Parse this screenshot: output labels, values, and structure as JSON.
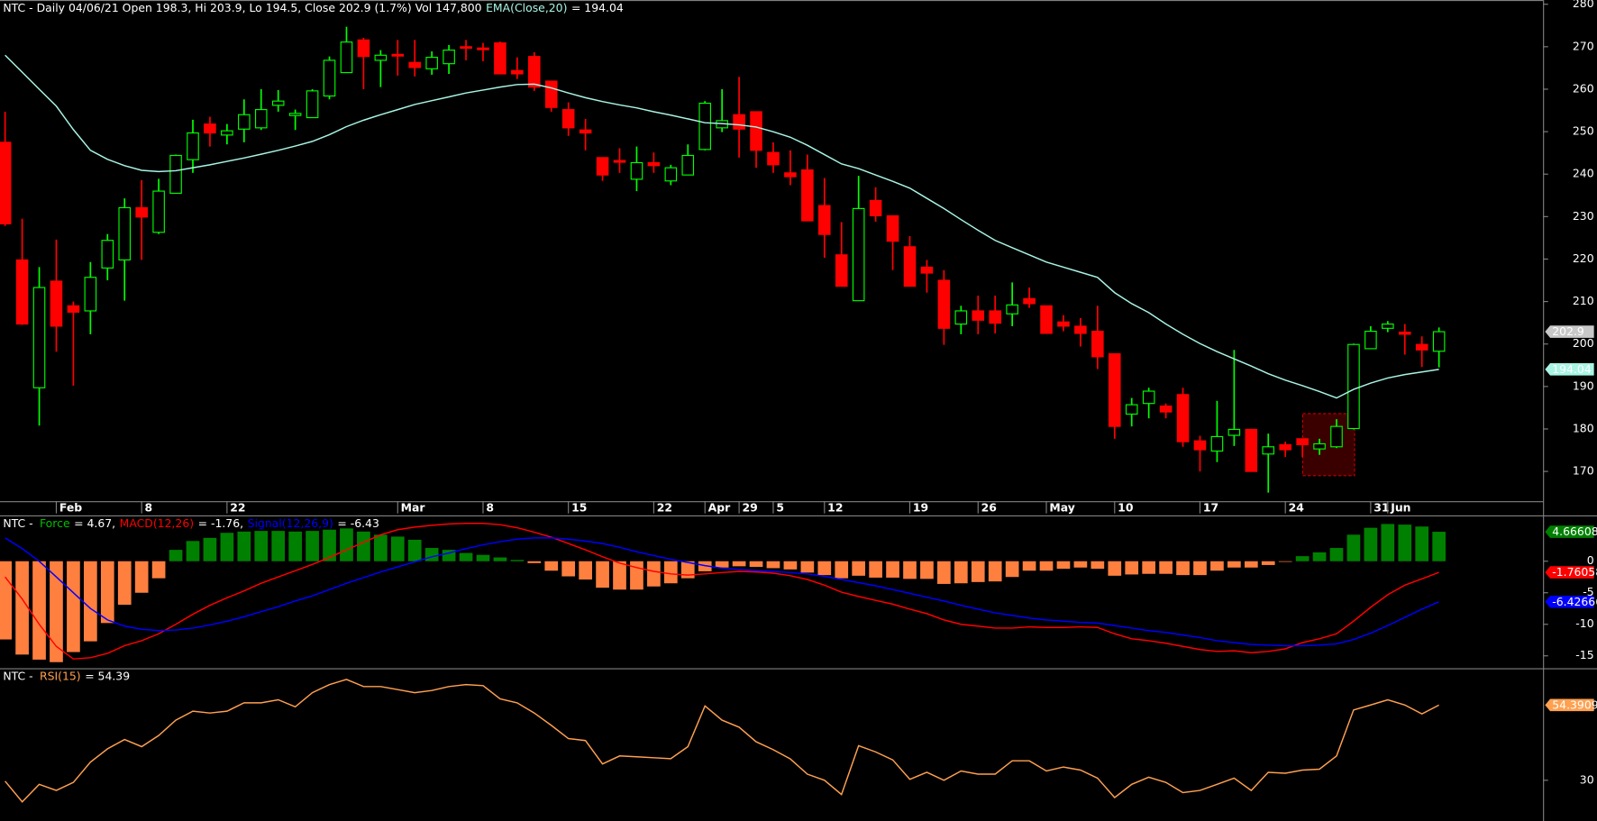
{
  "chart_data": [
    {
      "type": "candlestick",
      "title": "NTC - Daily 04/06/21 Open 198.3, Hi 203.9, Lo 194.5, Close 202.9 (1.7%) Vol 147,800",
      "categories": [
        null,
        null,
        null,
        "Feb",
        null,
        null,
        null,
        null,
        "8",
        null,
        null,
        null,
        null,
        "22",
        null,
        null,
        null,
        null,
        null,
        null,
        null,
        null,
        null,
        "Mar",
        null,
        null,
        null,
        null,
        "8",
        null,
        null,
        null,
        null,
        "15",
        null,
        null,
        null,
        null,
        "22",
        null,
        null,
        "Apr",
        null,
        "29",
        null,
        "5",
        null,
        null,
        "12",
        null,
        null,
        null,
        null,
        "19",
        null,
        null,
        null,
        "26",
        null,
        null,
        null,
        "May",
        null,
        null,
        null,
        "10",
        null,
        null,
        null,
        null,
        "17",
        null,
        null,
        null,
        null,
        "24",
        null,
        null,
        null,
        null,
        "31",
        "Jun",
        null,
        null,
        null
      ],
      "open": [
        247.5,
        219.8,
        189.7,
        214.8,
        209.0,
        207.8,
        217.9,
        219.8,
        232.1,
        226.3,
        235.5,
        243.4,
        251.8,
        249.2,
        250.6,
        250.9,
        256.2,
        253.8,
        253.3,
        258.4,
        263.9,
        271.6,
        266.8,
        268.2,
        266.3,
        264.8,
        266.0,
        270.0,
        269.7,
        270.9,
        264.4,
        267.7,
        261.9,
        255.2,
        250.4,
        243.9,
        243.2,
        238.8,
        242.7,
        238.4,
        239.8,
        245.8,
        250.9,
        254.0,
        254.7,
        245.1,
        240.3,
        241.0,
        232.6,
        221.0,
        210.2,
        233.8,
        230.2,
        222.9,
        218.1,
        215.0,
        204.7,
        207.8,
        207.8,
        207.1,
        210.7,
        209.0,
        205.2,
        204.2,
        203.0,
        197.7,
        183.5,
        186.0,
        185.4,
        188.1,
        177.2,
        174.8,
        178.5,
        179.9,
        174.1,
        176.3,
        177.7,
        175.3,
        175.8,
        180.1,
        198.9,
        203.7,
        202.8,
        199.9,
        198.3
      ],
      "high": [
        254.7,
        229.5,
        218.1,
        224.6,
        210.0,
        219.3,
        225.9,
        234.3,
        238.6,
        238.9,
        244.6,
        252.8,
        253.5,
        251.8,
        257.6,
        260.0,
        259.8,
        255.2,
        260.0,
        267.7,
        274.7,
        272.1,
        269.2,
        271.6,
        271.6,
        268.9,
        270.4,
        271.6,
        270.9,
        271.2,
        267.5,
        268.7,
        261.9,
        256.9,
        253.0,
        243.9,
        246.1,
        246.5,
        245.1,
        242.2,
        247.0,
        257.2,
        260.0,
        262.9,
        254.7,
        247.5,
        245.6,
        244.6,
        239.1,
        228.7,
        239.6,
        236.9,
        230.2,
        225.4,
        219.8,
        217.4,
        209.0,
        211.4,
        211.4,
        214.5,
        213.3,
        209.0,
        206.8,
        206.1,
        209.0,
        197.7,
        187.3,
        189.7,
        186.0,
        189.7,
        178.4,
        186.6,
        198.6,
        179.9,
        178.9,
        177.0,
        177.7,
        177.7,
        182.3,
        200.1,
        204.2,
        205.4,
        204.7,
        201.8,
        203.9
      ],
      "low": [
        227.8,
        204.5,
        180.8,
        198.2,
        190.2,
        202.3,
        215.0,
        210.2,
        219.8,
        225.9,
        235.5,
        240.3,
        246.5,
        247.0,
        247.5,
        250.4,
        254.7,
        250.4,
        253.3,
        257.6,
        263.9,
        260.0,
        260.5,
        263.2,
        263.0,
        263.4,
        263.6,
        266.8,
        266.6,
        263.6,
        262.4,
        259.6,
        254.7,
        249.0,
        245.6,
        238.4,
        240.3,
        236.0,
        240.3,
        237.4,
        239.8,
        245.6,
        249.9,
        243.9,
        241.5,
        240.3,
        237.4,
        229.0,
        220.3,
        213.6,
        210.2,
        228.8,
        217.4,
        213.6,
        212.1,
        199.8,
        202.3,
        202.3,
        202.5,
        204.2,
        208.5,
        202.5,
        203.0,
        199.4,
        194.1,
        177.7,
        180.6,
        182.5,
        182.5,
        175.8,
        170.0,
        172.2,
        176.0,
        170.0,
        165.0,
        173.4,
        173.4,
        173.9,
        175.5,
        179.9,
        198.9,
        202.8,
        197.5,
        194.6,
        194.5
      ],
      "close": [
        228.3,
        204.7,
        213.3,
        204.2,
        207.5,
        215.7,
        224.4,
        232.1,
        229.9,
        236.0,
        244.4,
        249.7,
        249.7,
        250.2,
        254.0,
        255.2,
        257.2,
        254.3,
        259.6,
        266.8,
        271.1,
        267.7,
        268.0,
        267.8,
        265.1,
        267.5,
        269.2,
        269.7,
        269.3,
        263.6,
        263.6,
        260.5,
        255.7,
        250.9,
        249.7,
        239.8,
        242.8,
        242.7,
        242.0,
        241.5,
        244.4,
        256.7,
        252.6,
        250.6,
        245.6,
        242.2,
        239.4,
        229.0,
        225.8,
        213.6,
        231.9,
        230.2,
        224.2,
        213.6,
        216.7,
        203.7,
        207.8,
        205.6,
        204.9,
        209.2,
        209.5,
        202.5,
        204.2,
        202.5,
        197.0,
        180.6,
        185.7,
        188.9,
        184.0,
        177.0,
        175.1,
        178.2,
        179.9,
        170.0,
        175.8,
        175.1,
        176.3,
        176.5,
        180.6,
        199.9,
        203.0,
        204.7,
        202.3,
        198.6,
        202.9
      ],
      "up_color": "#00ff00",
      "down_color": "#ff0000",
      "ema": {
        "name": "EMA(Close,20)",
        "readout": "= 194.04",
        "color": "#a8f5e4",
        "values": [
          268.0,
          264.0,
          260.0,
          256.0,
          250.5,
          245.6,
          243.5,
          242.0,
          240.9,
          240.6,
          240.8,
          241.5,
          242.2,
          243.0,
          243.8,
          244.7,
          245.6,
          246.6,
          247.7,
          249.3,
          251.2,
          252.7,
          254.0,
          255.2,
          256.4,
          257.3,
          258.2,
          259.1,
          259.8,
          260.5,
          261.1,
          261.2,
          260.3,
          259.1,
          258.0,
          257.1,
          256.3,
          255.6,
          254.7,
          253.9,
          253.0,
          252.1,
          251.9,
          251.6,
          251.1,
          250.0,
          248.7,
          246.8,
          244.6,
          242.4,
          241.3,
          239.8,
          238.3,
          236.7,
          234.3,
          231.9,
          229.3,
          226.8,
          224.4,
          222.7,
          221.0,
          219.3,
          218.1,
          216.9,
          215.7,
          212.1,
          209.5,
          207.4,
          204.7,
          202.3,
          200.1,
          198.2,
          196.5,
          194.8,
          193.0,
          191.5,
          190.2,
          188.8,
          187.3,
          189.3,
          190.8,
          192.0,
          192.8,
          193.4,
          194.04
        ]
      },
      "ylim": [
        163,
        281
      ],
      "yticks": [
        170,
        180,
        190,
        200,
        210,
        220,
        230,
        240,
        250,
        260,
        270,
        280
      ]
    },
    {
      "type": "combo",
      "prefix": "NTC - ",
      "series": [
        {
          "type": "bar",
          "name": "Force",
          "readout": "= 4.67,",
          "color": "#008000",
          "neg_color": "#ff7f3f",
          "values": [
            -12.4,
            -14.8,
            -15.6,
            -16.0,
            -14.4,
            -12.7,
            -9.8,
            -6.9,
            -5.0,
            -2.7,
            1.8,
            3.2,
            3.7,
            4.5,
            4.7,
            4.8,
            4.8,
            4.7,
            4.8,
            5.0,
            5.2,
            4.7,
            4.2,
            3.9,
            3.4,
            2.1,
            1.8,
            1.3,
            1.0,
            0.6,
            0.2,
            -0.3,
            -1.5,
            -2.4,
            -2.9,
            -4.2,
            -4.5,
            -4.5,
            -4.0,
            -3.5,
            -2.7,
            -1.6,
            -1.0,
            -0.8,
            -0.9,
            -1.1,
            -1.3,
            -1.8,
            -2.2,
            -2.7,
            -2.3,
            -2.6,
            -2.6,
            -2.8,
            -2.8,
            -3.6,
            -3.5,
            -3.3,
            -3.2,
            -2.5,
            -1.5,
            -1.5,
            -1.2,
            -1.0,
            -1.2,
            -2.3,
            -2.1,
            -2.0,
            -2.0,
            -2.2,
            -2.2,
            -1.5,
            -1.0,
            -1.0,
            -0.6,
            -0.1,
            0.8,
            1.4,
            2.1,
            4.2,
            5.3,
            5.9,
            5.8,
            5.5,
            4.66608
          ]
        },
        {
          "type": "line",
          "name": "MACD(12,26)",
          "readout": "= -1.76,",
          "color": "#ff0000",
          "values": [
            -2.5,
            -6.0,
            -10.0,
            -13.5,
            -15.5,
            -15.3,
            -14.6,
            -13.4,
            -12.6,
            -11.5,
            -10.0,
            -8.4,
            -7.0,
            -5.8,
            -4.7,
            -3.5,
            -2.5,
            -1.5,
            -0.5,
            0.6,
            1.8,
            3.0,
            4.2,
            5.0,
            5.4,
            5.7,
            5.9,
            6.0,
            6.0,
            5.8,
            5.3,
            4.6,
            3.8,
            2.8,
            1.8,
            0.7,
            -0.3,
            -1.0,
            -1.6,
            -2.0,
            -2.2,
            -2.0,
            -1.8,
            -1.6,
            -1.7,
            -1.9,
            -2.3,
            -2.9,
            -3.8,
            -4.9,
            -5.6,
            -6.2,
            -6.8,
            -7.6,
            -8.3,
            -9.3,
            -10.0,
            -10.3,
            -10.6,
            -10.6,
            -10.4,
            -10.5,
            -10.5,
            -10.4,
            -10.5,
            -11.5,
            -12.3,
            -12.6,
            -13.0,
            -13.5,
            -14.0,
            -14.3,
            -14.2,
            -14.5,
            -14.3,
            -13.9,
            -12.9,
            -12.3,
            -11.5,
            -9.5,
            -7.3,
            -5.3,
            -3.8,
            -2.8,
            -1.76058
          ]
        },
        {
          "type": "line",
          "name": "Signal(12,26,9)",
          "readout": "= -6.43",
          "color": "#0000ff",
          "values": [
            3.7,
            2.0,
            0.0,
            -2.5,
            -5.0,
            -7.5,
            -9.3,
            -10.3,
            -10.8,
            -11.0,
            -10.9,
            -10.6,
            -10.1,
            -9.5,
            -8.8,
            -8.0,
            -7.2,
            -6.3,
            -5.5,
            -4.5,
            -3.5,
            -2.6,
            -1.7,
            -0.9,
            -0.1,
            0.7,
            1.3,
            2.0,
            2.6,
            3.1,
            3.5,
            3.7,
            3.7,
            3.5,
            3.2,
            2.8,
            2.2,
            1.5,
            0.9,
            0.3,
            -0.2,
            -0.7,
            -1.1,
            -1.3,
            -1.5,
            -1.6,
            -1.8,
            -2.0,
            -2.4,
            -2.9,
            -3.4,
            -3.9,
            -4.5,
            -5.1,
            -5.7,
            -6.3,
            -7.0,
            -7.6,
            -8.2,
            -8.6,
            -9.0,
            -9.3,
            -9.5,
            -9.7,
            -9.8,
            -10.2,
            -10.6,
            -11.0,
            -11.3,
            -11.7,
            -12.1,
            -12.6,
            -12.9,
            -13.2,
            -13.3,
            -13.4,
            -13.4,
            -13.3,
            -13.1,
            -12.4,
            -11.4,
            -10.2,
            -8.9,
            -7.6,
            -6.42666
          ]
        }
      ],
      "ylim": [
        -16.8,
        7.1
      ],
      "yticks": [
        0,
        -5,
        -10,
        -15
      ]
    },
    {
      "type": "line",
      "prefix": "NTC - ",
      "series": [
        {
          "name": "RSI(15)",
          "readout": "= 54.39",
          "color": "#ffa050",
          "values": [
            29.7,
            23.0,
            28.7,
            26.7,
            29.3,
            35.9,
            40.2,
            43.2,
            40.9,
            44.5,
            49.5,
            52.4,
            51.8,
            52.4,
            55.1,
            55.1,
            56.1,
            53.8,
            58.4,
            61.0,
            62.7,
            60.4,
            60.4,
            59.4,
            58.4,
            59.1,
            60.4,
            61.0,
            60.7,
            56.4,
            55.1,
            51.8,
            47.8,
            43.5,
            42.9,
            35.3,
            37.9,
            37.6,
            37.3,
            37.0,
            40.9,
            54.1,
            49.5,
            47.2,
            42.5,
            39.9,
            36.9,
            32.0,
            30.0,
            25.4,
            41.2,
            39.2,
            36.6,
            30.3,
            32.6,
            30.0,
            33.0,
            32.0,
            32.0,
            36.3,
            36.3,
            33.0,
            34.3,
            33.3,
            30.7,
            24.4,
            28.7,
            31.0,
            29.3,
            26.0,
            26.7,
            28.7,
            30.7,
            26.7,
            32.6,
            32.3,
            33.3,
            33.6,
            37.9,
            52.8,
            54.4,
            56.1,
            54.4,
            51.5,
            54.3909
          ]
        }
      ],
      "ylim": [
        16.8,
        66
      ],
      "yticks": [
        30
      ]
    }
  ]
}
